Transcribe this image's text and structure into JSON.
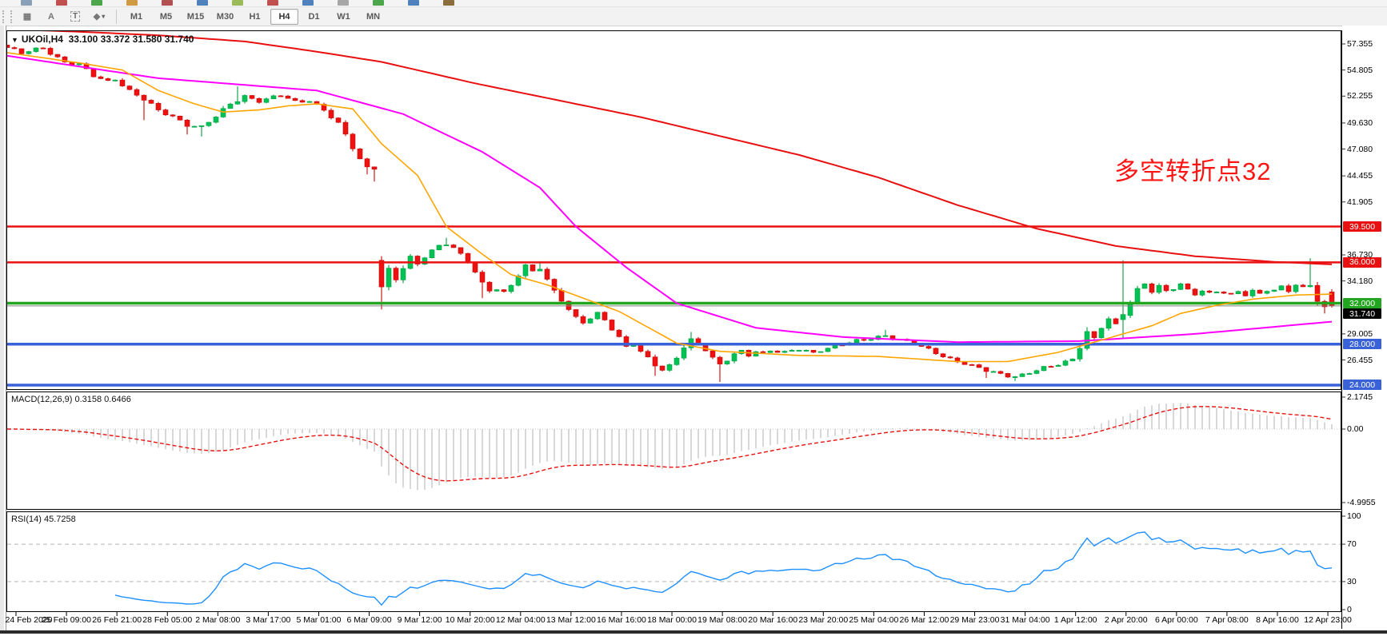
{
  "toolbar": {
    "tool_icons": [
      {
        "name": "grid-f-icon",
        "glyph": "▦"
      },
      {
        "name": "font-icon",
        "glyph": "A"
      },
      {
        "name": "text-label-icon",
        "glyph": "T"
      },
      {
        "name": "shapes-icon",
        "glyph": "◆"
      },
      {
        "name": "dropdown-caret-icon",
        "glyph": "▾"
      }
    ],
    "timeframes": [
      "M1",
      "M5",
      "M15",
      "M30",
      "H1",
      "H4",
      "D1",
      "W1",
      "MN"
    ],
    "active_timeframe": "H4",
    "top_strip_colors": [
      "#8aa0b8",
      "#c0504d",
      "#4ba64b",
      "#d09a45",
      "#b05050",
      "#4f81bd",
      "#9bbb59",
      "#c0504d",
      "#4f81bd",
      "#a6a6a6",
      "#4ba64b",
      "#4f81bd",
      "#8a6d3b"
    ]
  },
  "chart": {
    "title": {
      "caret": "▼",
      "symbol": "UKOil,H4",
      "ohlc": "33.100 33.372 31.580 31.740"
    },
    "annotation": {
      "text": "多空转折点32",
      "color": "#ff1414"
    },
    "price_ticks": [
      "57.355",
      "54.805",
      "52.255",
      "49.630",
      "47.080",
      "44.455",
      "41.905",
      "36.730",
      "34.180",
      "29.005",
      "26.455"
    ],
    "levels": [
      {
        "price": 39.5,
        "label": "39.500",
        "color": "#e81010",
        "width": 2.5
      },
      {
        "price": 36.0,
        "label": "36.000",
        "color": "#e81010",
        "width": 2.5
      },
      {
        "price": 32.0,
        "label": "32.000",
        "color": "#22a51f",
        "width": 3.5
      },
      {
        "price": 28.0,
        "label": "28.000",
        "color": "#3a62d8",
        "width": 3.5
      },
      {
        "price": 24.0,
        "label": "24.000",
        "color": "#3a62d8",
        "width": 3.5
      }
    ],
    "current_price": {
      "value": 31.74,
      "label": "31.740",
      "line_color": "#808080",
      "badge_color": "#000000"
    }
  },
  "macd_panel": {
    "label": "MACD(12,26,9) 0.3158 0.6466",
    "ticks": [
      {
        "t": "2.1745",
        "v": 2.1745
      },
      {
        "t": "0.00",
        "v": 0
      },
      {
        "t": "-4.9955",
        "v": -4.9955
      }
    ]
  },
  "rsi_panel": {
    "label": "RSI(14) 45.7258",
    "ticks": [
      {
        "t": "100",
        "v": 100
      },
      {
        "t": "70",
        "v": 70
      },
      {
        "t": "30",
        "v": 30
      },
      {
        "t": "0",
        "v": 0
      }
    ]
  },
  "chart_data": {
    "type": "candlestick",
    "symbol": "UKOil",
    "timeframe": "H4",
    "bar_count": 185,
    "y_range_main": [
      23.9,
      57.5
    ],
    "x_labels": [
      "24 Feb 2020",
      "25 Feb 09:00",
      "26 Feb 21:00",
      "28 Feb 05:00",
      "2 Mar 08:00",
      "3 Mar 17:00",
      "5 Mar 01:00",
      "6 Mar 09:00",
      "9 Mar 12:00",
      "10 Mar 20:00",
      "12 Mar 04:00",
      "13 Mar 12:00",
      "16 Mar 16:00",
      "18 Mar 00:00",
      "19 Mar 08:00",
      "20 Mar 16:00",
      "23 Mar 20:00",
      "25 Mar 04:00",
      "26 Mar 12:00",
      "29 Mar 23:00",
      "31 Mar 04:00",
      "1 Apr 12:00",
      "2 Apr 20:00",
      "6 Apr 00:00",
      "7 Apr 08:00",
      "8 Apr 16:00",
      "12 Apr 23:00"
    ],
    "up_color": "#00c254",
    "up_edge": "#009f40",
    "down_color": "#ee1111",
    "down_edge": "#c40808",
    "close_waypoints": [
      [
        0,
        57.0
      ],
      [
        2,
        56.4
      ],
      [
        5,
        57.0
      ],
      [
        8,
        55.6
      ],
      [
        10,
        55.3
      ],
      [
        12,
        54.2
      ],
      [
        14,
        53.7
      ],
      [
        15,
        54.0
      ],
      [
        17,
        52.8
      ],
      [
        19,
        51.9
      ],
      [
        21,
        50.8
      ],
      [
        23,
        50.3
      ],
      [
        25,
        49.5
      ],
      [
        27,
        49.2
      ],
      [
        29,
        50.2
      ],
      [
        31,
        51.5
      ],
      [
        33,
        52.3
      ],
      [
        35,
        51.8
      ],
      [
        36,
        51.9
      ],
      [
        38,
        52.3
      ],
      [
        40,
        51.7
      ],
      [
        42,
        51.9
      ],
      [
        43,
        51.4
      ],
      [
        44,
        50.9
      ],
      [
        45,
        50.2
      ],
      [
        46,
        49.5
      ],
      [
        47,
        48.4
      ],
      [
        48,
        47.2
      ],
      [
        49,
        46.1
      ],
      [
        50,
        45.3
      ],
      [
        51,
        45.1
      ],
      [
        52,
        33.6
      ],
      [
        53,
        35.3
      ],
      [
        54,
        34.3
      ],
      [
        55,
        35.4
      ],
      [
        56,
        36.4
      ],
      [
        57,
        35.8
      ],
      [
        58,
        36.6
      ],
      [
        59,
        37.2
      ],
      [
        60,
        37.7
      ],
      [
        61,
        37.9
      ],
      [
        62,
        37.4
      ],
      [
        63,
        36.7
      ],
      [
        64,
        36.0
      ],
      [
        65,
        35.0
      ],
      [
        66,
        33.9
      ],
      [
        67,
        33.3
      ],
      [
        68,
        33.5
      ],
      [
        69,
        33.1
      ],
      [
        70,
        33.8
      ],
      [
        71,
        34.8
      ],
      [
        72,
        35.6
      ],
      [
        73,
        35.0
      ],
      [
        74,
        35.4
      ],
      [
        75,
        34.3
      ],
      [
        76,
        33.2
      ],
      [
        77,
        32.4
      ],
      [
        78,
        31.5
      ],
      [
        79,
        30.6
      ],
      [
        80,
        30.1
      ],
      [
        81,
        30.5
      ],
      [
        82,
        30.9
      ],
      [
        83,
        30.3
      ],
      [
        84,
        29.5
      ],
      [
        85,
        28.7
      ],
      [
        86,
        27.8
      ],
      [
        87,
        28.2
      ],
      [
        88,
        27.3
      ],
      [
        89,
        26.6
      ],
      [
        90,
        25.9
      ],
      [
        91,
        25.4
      ],
      [
        92,
        25.8
      ],
      [
        93,
        26.7
      ],
      [
        94,
        27.8
      ],
      [
        95,
        28.5
      ],
      [
        96,
        28.1
      ],
      [
        97,
        27.5
      ],
      [
        98,
        26.6
      ],
      [
        99,
        25.9
      ],
      [
        100,
        26.4
      ],
      [
        101,
        27.0
      ],
      [
        102,
        27.3
      ],
      [
        103,
        27.0
      ],
      [
        104,
        27.4
      ],
      [
        105,
        27.1
      ],
      [
        106,
        27.4
      ],
      [
        108,
        27.1
      ],
      [
        110,
        27.5
      ],
      [
        112,
        27.2
      ],
      [
        113,
        27.5
      ],
      [
        115,
        27.8
      ],
      [
        117,
        28.1
      ],
      [
        119,
        28.4
      ],
      [
        120,
        28.6
      ],
      [
        122,
        28.9
      ],
      [
        124,
        28.4
      ],
      [
        126,
        28.0
      ],
      [
        127,
        27.7
      ],
      [
        129,
        27.2
      ],
      [
        131,
        26.6
      ],
      [
        133,
        26.1
      ],
      [
        134,
        25.8
      ],
      [
        136,
        25.4
      ],
      [
        138,
        25.1
      ],
      [
        140,
        24.9
      ],
      [
        141,
        25.0
      ],
      [
        143,
        25.4
      ],
      [
        145,
        25.8
      ],
      [
        147,
        26.3
      ],
      [
        148,
        26.6
      ],
      [
        149,
        27.8
      ],
      [
        150,
        29.2
      ],
      [
        151,
        28.5
      ],
      [
        152,
        29.6
      ],
      [
        153,
        30.4
      ],
      [
        154,
        29.8
      ],
      [
        155,
        30.9
      ],
      [
        156,
        32.1
      ],
      [
        157,
        33.4
      ],
      [
        158,
        34.0
      ],
      [
        159,
        33.2
      ],
      [
        160,
        33.6
      ],
      [
        161,
        33.1
      ],
      [
        162,
        33.4
      ],
      [
        163,
        33.8
      ],
      [
        164,
        33.3
      ],
      [
        165,
        33.0
      ],
      [
        166,
        33.3
      ],
      [
        167,
        33.0
      ],
      [
        168,
        33.2
      ],
      [
        169,
        33.0
      ],
      [
        170,
        32.7
      ],
      [
        171,
        33.1
      ],
      [
        172,
        32.8
      ],
      [
        173,
        33.2
      ],
      [
        174,
        33.0
      ],
      [
        175,
        33.4
      ],
      [
        176,
        33.3
      ],
      [
        177,
        33.6
      ],
      [
        178,
        33.2
      ],
      [
        179,
        33.7
      ],
      [
        180,
        33.4
      ],
      [
        181,
        33.8
      ],
      [
        182,
        32.3
      ],
      [
        183,
        31.6
      ],
      [
        184,
        31.74
      ]
    ],
    "wick_low_overrides": {
      "19": 49.9,
      "25": 48.5,
      "27": 48.3,
      "50": 44.6,
      "51": 43.9,
      "66": 32.5,
      "90": 24.9,
      "99": 24.3,
      "136": 24.7,
      "140": 24.4,
      "183": 31.0
    },
    "wick_high_overrides": {
      "32": 53.2,
      "61": 38.4,
      "74": 36.1,
      "95": 29.2,
      "122": 29.4,
      "181": 36.4
    },
    "special_bars": {
      "52": [
        36.2,
        36.6,
        31.4,
        33.6
      ],
      "155": [
        30.4,
        36.2,
        28.5,
        30.9
      ],
      "184": [
        33.1,
        33.372,
        31.58,
        31.74
      ]
    },
    "moving_averages": [
      {
        "name": "ma-slow-red",
        "color": "#e81010",
        "width": 2,
        "points": [
          [
            0,
            58.8
          ],
          [
            10,
            58.55
          ],
          [
            21,
            58.2
          ],
          [
            33,
            57.6
          ],
          [
            43,
            56.6
          ],
          [
            52,
            55.6
          ],
          [
            65,
            53.5
          ],
          [
            88,
            50.2
          ],
          [
            110,
            46.5
          ],
          [
            121,
            44.3
          ],
          [
            132,
            41.6
          ],
          [
            143,
            39.3
          ],
          [
            154,
            37.6
          ],
          [
            165,
            36.6
          ],
          [
            176,
            36.05
          ],
          [
            184,
            35.8
          ]
        ]
      },
      {
        "name": "ma-mid-magenta",
        "color": "#ff00ff",
        "width": 2,
        "points": [
          [
            0,
            56.2
          ],
          [
            21,
            54.0
          ],
          [
            43,
            52.8
          ],
          [
            55,
            50.5
          ],
          [
            66,
            46.8
          ],
          [
            74,
            43.3
          ],
          [
            79,
            39.5
          ],
          [
            86,
            35.5
          ],
          [
            93,
            32.0
          ],
          [
            104,
            29.6
          ],
          [
            116,
            28.7
          ],
          [
            132,
            28.2
          ],
          [
            149,
            28.3
          ],
          [
            165,
            29.0
          ],
          [
            184,
            30.2
          ]
        ]
      },
      {
        "name": "ma-fast-orange",
        "color": "#ffa500",
        "width": 1.6,
        "points": [
          [
            0,
            56.5
          ],
          [
            10,
            55.5
          ],
          [
            16,
            54.8
          ],
          [
            21,
            52.8
          ],
          [
            26,
            51.5
          ],
          [
            30,
            50.7
          ],
          [
            35,
            50.9
          ],
          [
            39,
            51.3
          ],
          [
            43,
            51.5
          ],
          [
            48,
            51.0
          ],
          [
            52,
            47.6
          ],
          [
            57,
            44.5
          ],
          [
            61,
            39.5
          ],
          [
            66,
            36.8
          ],
          [
            70,
            34.8
          ],
          [
            75,
            33.8
          ],
          [
            85,
            31.2
          ],
          [
            93,
            28.1
          ],
          [
            99,
            27.3
          ],
          [
            110,
            26.9
          ],
          [
            121,
            26.8
          ],
          [
            132,
            26.3
          ],
          [
            139,
            26.3
          ],
          [
            146,
            27.2
          ],
          [
            154,
            28.8
          ],
          [
            159,
            29.8
          ],
          [
            163,
            31.0
          ],
          [
            168,
            31.8
          ],
          [
            173,
            32.4
          ],
          [
            179,
            32.8
          ],
          [
            184,
            32.9
          ]
        ]
      }
    ],
    "indicators": {
      "macd": {
        "fast": 12,
        "slow": 26,
        "signal": 9,
        "histogram_color": "#bdbdbd",
        "signal_color": "#e81010"
      },
      "rsi": {
        "period": 14,
        "color": "#1e90ff",
        "levels": [
          70,
          30
        ],
        "level_color": "#b3b3b3"
      }
    }
  }
}
